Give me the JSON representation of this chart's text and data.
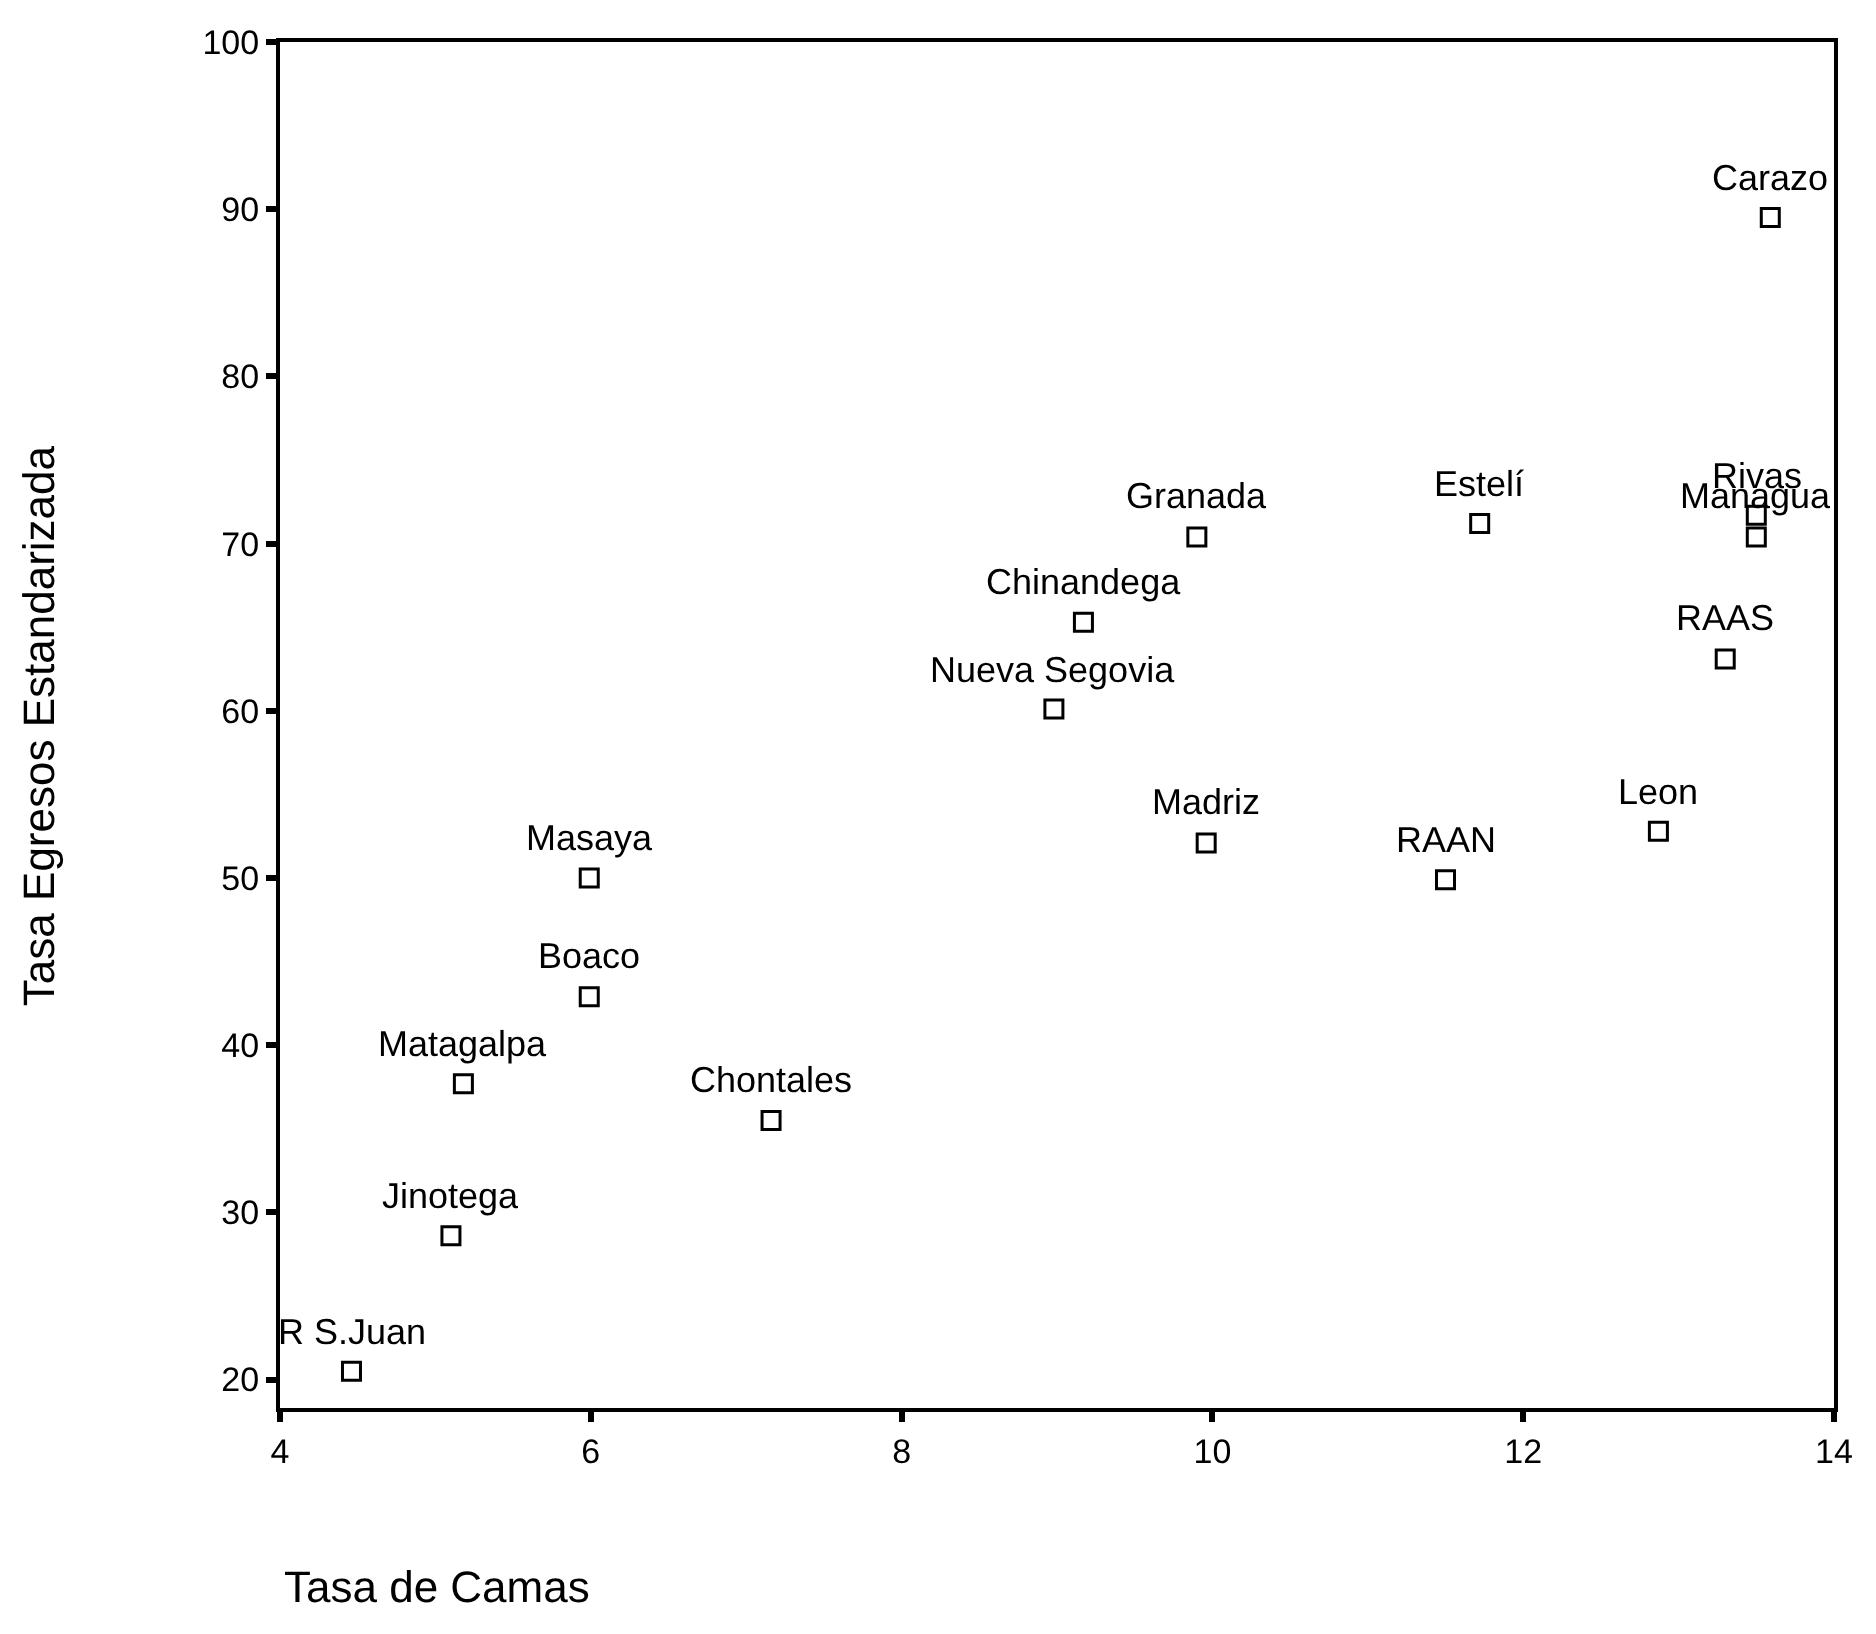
{
  "chart_data": {
    "type": "scatter",
    "xlabel": "Tasa de Camas",
    "ylabel": "Tasa Egresos Estandarizada",
    "x": [
      13.59,
      13.5,
      13.5,
      9.9,
      11.72,
      9.17,
      13.3,
      8.98,
      9.96,
      11.5,
      12.87,
      5.99,
      5.99,
      5.18,
      7.16,
      5.1,
      4.46
    ],
    "series": [
      {
        "color": "#000000",
        "values": [
          89.5,
          71.7,
          70.4,
          70.4,
          71.2,
          65.3,
          63.1,
          60.1,
          52.1,
          49.9,
          52.8,
          50,
          42.9,
          37.7,
          35.5,
          28.6,
          20.5
        ]
      }
    ],
    "annotations": [
      {
        "text": "Carazo",
        "x": 13.59,
        "y": 89.5
      },
      {
        "text": "Rivas",
        "x": 13.5,
        "y": 71.7
      },
      {
        "text": "Managua",
        "x": 13.5,
        "y": 70.4
      },
      {
        "text": "Granada",
        "x": 9.9,
        "y": 70.4
      },
      {
        "text": "Estelí",
        "x": 11.72,
        "y": 71.2
      },
      {
        "text": "Chinandega",
        "x": 9.17,
        "y": 65.3
      },
      {
        "text": "RAAS",
        "x": 13.3,
        "y": 63.1
      },
      {
        "text": "Nueva Segovia",
        "x": 8.98,
        "y": 60.1
      },
      {
        "text": "Madriz",
        "x": 9.96,
        "y": 52.1
      },
      {
        "text": "RAAN",
        "x": 11.5,
        "y": 49.9
      },
      {
        "text": "Leon",
        "x": 12.87,
        "y": 52.8
      },
      {
        "text": "Masaya",
        "x": 5.99,
        "y": 50
      },
      {
        "text": "Boaco",
        "x": 5.99,
        "y": 42.9
      },
      {
        "text": "Matagalpa",
        "x": 5.18,
        "y": 37.7
      },
      {
        "text": "Chontales",
        "x": 7.16,
        "y": 35.5
      },
      {
        "text": "Jinotega",
        "x": 5.1,
        "y": 28.6
      },
      {
        "text": "R S.Juan",
        "x": 4.46,
        "y": 20.5
      }
    ],
    "xlim": [
      4,
      14
    ],
    "xticks": [
      4,
      6,
      8,
      10,
      12,
      14
    ],
    "ylim": [
      18.3,
      100
    ],
    "yticks": [
      20,
      30,
      40,
      50,
      60,
      70,
      80,
      90,
      100
    ],
    "marker": "square"
  }
}
